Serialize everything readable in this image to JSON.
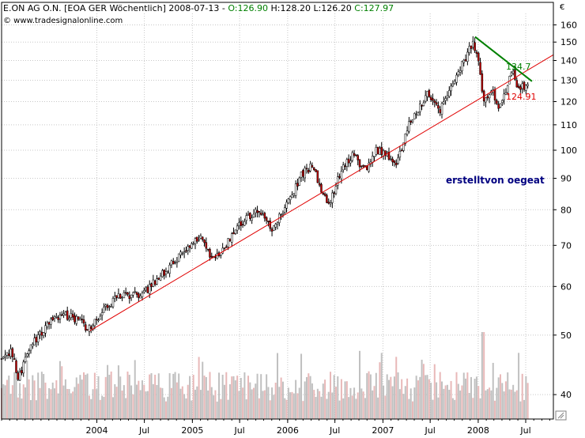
{
  "header": {
    "title": "E.ON AG O.N. [EOA GER  Wöchentlich] 2008-07-13 - ",
    "ohlc": [
      {
        "label": "O:",
        "value": "126.90",
        "color": "#008000"
      },
      {
        "label": " H:",
        "value": "128.20",
        "color": "#000000"
      },
      {
        "label": " L:",
        "value": "126.20",
        "color": "#000000"
      },
      {
        "label": " C:",
        "value": "127.97",
        "color": "#008000"
      }
    ],
    "copyright": "© www.tradesignalonline.com",
    "currency": "€"
  },
  "annotation": "erstelltvon oegeat",
  "colors": {
    "up": "#ffffff",
    "down": "#c00000",
    "wick": "#000000",
    "support": "#e00000",
    "resistance": "#008000",
    "grid": "#c8c8c8",
    "volume": "#c0c0c0",
    "volume_alt": "#e8b8b8",
    "annotation": "#000080"
  },
  "chart_data": {
    "type": "candlestick",
    "frequency": "weekly",
    "y_scale": "log",
    "ylim": [
      36.5,
      167
    ],
    "y_ticks": [
      40,
      50,
      60,
      70,
      80,
      90,
      100,
      110,
      120,
      130,
      140,
      150,
      160
    ],
    "x_range": [
      "2003-01-01",
      "2008-10-15"
    ],
    "x_ticks": [
      {
        "date": "2004-01-01",
        "label": "2004"
      },
      {
        "date": "2004-07-01",
        "label": "Jul"
      },
      {
        "date": "2005-01-01",
        "label": "2005"
      },
      {
        "date": "2005-07-01",
        "label": "Jul"
      },
      {
        "date": "2006-01-01",
        "label": "2006"
      },
      {
        "date": "2006-07-01",
        "label": "Jul"
      },
      {
        "date": "2007-01-01",
        "label": "2007"
      },
      {
        "date": "2007-07-01",
        "label": "Jul"
      },
      {
        "date": "2008-01-01",
        "label": "2008"
      },
      {
        "date": "2008-07-01",
        "label": "Jul"
      }
    ],
    "last": {
      "open": 126.9,
      "high": 128.2,
      "low": 126.2,
      "close": 127.97
    },
    "price_path": [
      [
        "2003-01-01",
        46
      ],
      [
        "2003-02-15",
        47
      ],
      [
        "2003-03-15",
        42.5
      ],
      [
        "2003-04-10",
        46
      ],
      [
        "2003-05-15",
        49
      ],
      [
        "2003-07-01",
        52
      ],
      [
        "2003-09-01",
        54
      ],
      [
        "2003-11-01",
        53
      ],
      [
        "2003-12-05",
        51
      ],
      [
        "2004-02-01",
        55
      ],
      [
        "2004-04-01",
        58
      ],
      [
        "2004-06-01",
        58
      ],
      [
        "2004-07-15",
        59
      ],
      [
        "2004-09-01",
        62
      ],
      [
        "2004-11-01",
        66
      ],
      [
        "2005-01-01",
        70
      ],
      [
        "2005-02-15",
        72
      ],
      [
        "2005-03-20",
        66
      ],
      [
        "2005-05-01",
        68
      ],
      [
        "2005-06-15",
        74
      ],
      [
        "2005-08-01",
        77
      ],
      [
        "2005-09-15",
        80
      ],
      [
        "2005-11-10",
        74
      ],
      [
        "2006-01-15",
        83
      ],
      [
        "2006-03-01",
        91
      ],
      [
        "2006-04-15",
        95
      ],
      [
        "2006-05-20",
        85
      ],
      [
        "2006-06-20",
        82
      ],
      [
        "2006-08-01",
        93
      ],
      [
        "2006-09-15",
        98
      ],
      [
        "2006-11-01",
        93
      ],
      [
        "2006-12-15",
        100
      ],
      [
        "2007-01-20",
        99
      ],
      [
        "2007-03-01",
        94
      ],
      [
        "2007-04-15",
        110
      ],
      [
        "2007-06-01",
        118
      ],
      [
        "2007-07-01",
        124
      ],
      [
        "2007-08-15",
        116
      ],
      [
        "2007-10-01",
        128
      ],
      [
        "2007-11-15",
        140
      ],
      [
        "2007-12-20",
        150
      ],
      [
        "2008-01-15",
        136
      ],
      [
        "2008-01-25",
        120
      ],
      [
        "2008-03-01",
        126
      ],
      [
        "2008-03-25",
        118
      ],
      [
        "2008-04-15",
        122
      ],
      [
        "2008-05-15",
        135
      ],
      [
        "2008-06-10",
        126
      ],
      [
        "2008-07-13",
        127.97
      ]
    ],
    "trendlines": [
      {
        "role": "support",
        "start": [
          "2003-12-05",
          50.8
        ],
        "end": [
          "2008-10-15",
          143
        ]
      },
      {
        "role": "resistance",
        "start": [
          "2007-12-20",
          153
        ],
        "end": [
          "2008-07-25",
          129.5
        ]
      }
    ],
    "level_labels": [
      {
        "value": "134.7",
        "role": "resistance"
      },
      {
        "value": "124.91",
        "role": "support"
      }
    ],
    "volume": {
      "relative_max": 1.0,
      "peak_week": "2008-01-20",
      "typical_range": [
        0.2,
        0.55
      ]
    }
  }
}
